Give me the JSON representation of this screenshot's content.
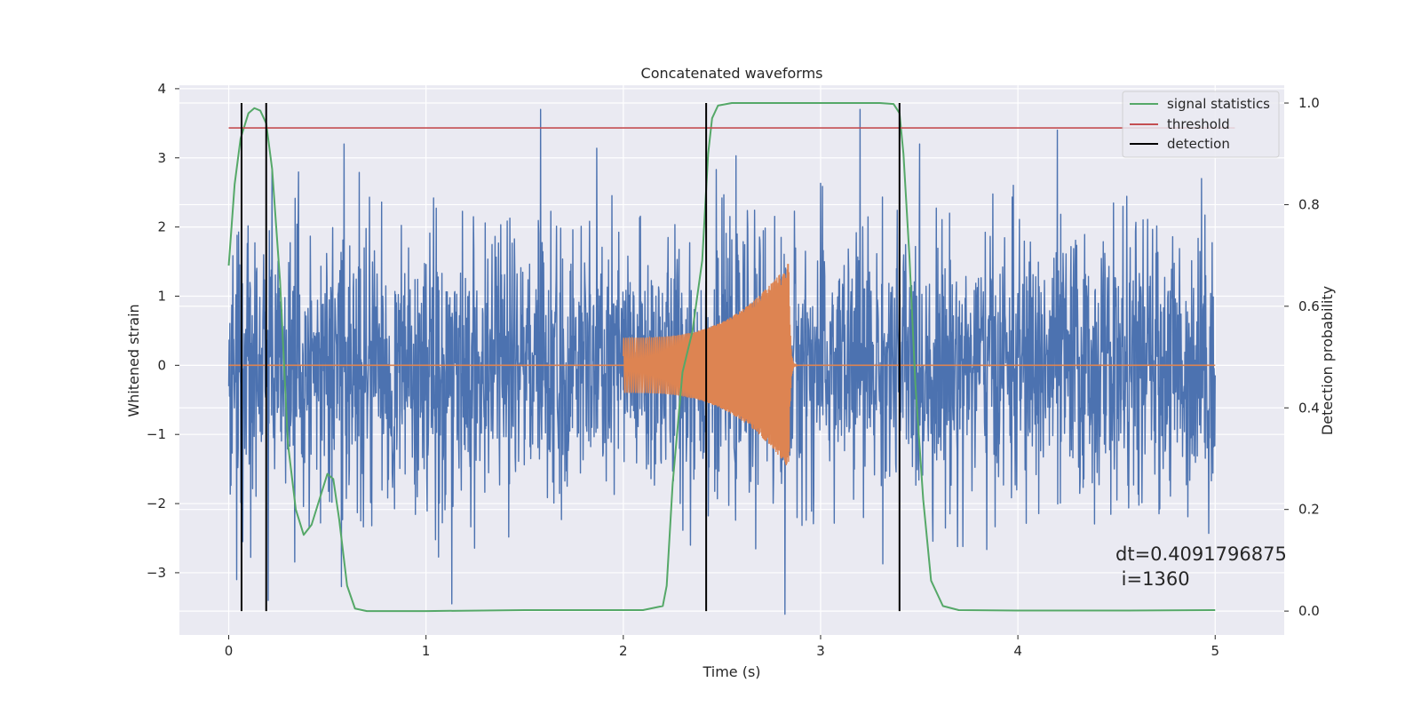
{
  "chart_data": {
    "type": "line",
    "title": "Concatenated waveforms",
    "xlabel": "Time (s)",
    "ylabel": "Whitened strain",
    "y2label": "Detection probability",
    "xlim": [
      -0.25,
      5.35
    ],
    "ylim": [
      -3.9,
      4.05
    ],
    "y2lim": [
      -0.047,
      1.035
    ],
    "xticks": [
      0,
      1,
      2,
      3,
      4,
      5
    ],
    "xtick_labels": [
      "0",
      "1",
      "2",
      "3",
      "4",
      "5"
    ],
    "yticks": [
      -3,
      -2,
      -1,
      0,
      1,
      2,
      3,
      4
    ],
    "ytick_labels": [
      "−3",
      "−2",
      "−1",
      "0",
      "1",
      "2",
      "3",
      "4"
    ],
    "y2ticks": [
      0.0,
      0.2,
      0.4,
      0.6,
      0.8,
      1.0
    ],
    "y2tick_labels": [
      "0.0",
      "0.2",
      "0.4",
      "0.6",
      "0.8",
      "1.0"
    ],
    "grid": true,
    "legend_position": "top-right",
    "legend": [
      {
        "label": "signal statistics",
        "color": "#55a868"
      },
      {
        "label": "threshold",
        "color": "#c44e52"
      },
      {
        "label": "detection",
        "color": "#000000"
      }
    ],
    "colors": {
      "strain": "#4c72b0",
      "waveform": "#dd8452",
      "signal_statistics": "#55a868",
      "threshold": "#c44e52",
      "detection": "#000000",
      "plot_background": "#eaeaf2",
      "grid": "#ffffff"
    },
    "series": [
      {
        "name": "strain (noise)",
        "axis": "left",
        "x_range": [
          0,
          5
        ],
        "typical_envelope": [
          -2.5,
          2.5
        ],
        "extremes": [
          {
            "x": 0.04,
            "y": -3.1
          },
          {
            "x": 0.2,
            "y": -3.4
          },
          {
            "x": 1.13,
            "y": -3.45
          },
          {
            "x": 1.58,
            "y": 3.7
          },
          {
            "x": 2.82,
            "y": -3.6
          },
          {
            "x": 3.2,
            "y": 3.7
          },
          {
            "x": 4.2,
            "y": 3.4
          },
          {
            "x": 4.93,
            "y": 2.7
          }
        ]
      },
      {
        "name": "injected waveform",
        "axis": "left",
        "segments": [
          {
            "x_start": 2.0,
            "x_end": 2.84,
            "amp_start": 0.4,
            "amp_end": 1.5
          }
        ]
      },
      {
        "name": "signal statistics",
        "axis": "right",
        "x": [
          0.0,
          0.03,
          0.06,
          0.1,
          0.13,
          0.16,
          0.19,
          0.22,
          0.26,
          0.3,
          0.34,
          0.38,
          0.42,
          0.46,
          0.5,
          0.53,
          0.56,
          0.6,
          0.64,
          0.7,
          1.0,
          1.5,
          1.9,
          2.1,
          2.2,
          2.22,
          2.25,
          2.3,
          2.35,
          2.4,
          2.43,
          2.45,
          2.48,
          2.55,
          3.0,
          3.3,
          3.37,
          3.4,
          3.42,
          3.45,
          3.48,
          3.52,
          3.56,
          3.62,
          3.7,
          4.0,
          4.5,
          5.0
        ],
        "values": [
          0.68,
          0.84,
          0.93,
          0.98,
          0.99,
          0.985,
          0.96,
          0.87,
          0.65,
          0.33,
          0.2,
          0.15,
          0.17,
          0.22,
          0.27,
          0.26,
          0.18,
          0.05,
          0.005,
          0.0,
          0.0,
          0.002,
          0.002,
          0.002,
          0.01,
          0.05,
          0.25,
          0.47,
          0.55,
          0.69,
          0.9,
          0.97,
          0.995,
          1.0,
          1.0,
          1.0,
          0.998,
          0.98,
          0.9,
          0.7,
          0.45,
          0.22,
          0.06,
          0.01,
          0.002,
          0.001,
          0.001,
          0.002
        ]
      },
      {
        "name": "threshold",
        "axis": "right",
        "x": [
          0.0,
          5.1
        ],
        "values": [
          0.951,
          0.951
        ]
      },
      {
        "name": "detection",
        "axis": "right",
        "x_positions": [
          0.065,
          0.19,
          2.42,
          3.4
        ],
        "range": [
          0.0,
          1.0
        ]
      }
    ],
    "annotations": [
      {
        "text": "dt=0.4091796875",
        "x": 4.5,
        "y": -2.8
      },
      {
        "text": " i=1360",
        "x": 4.5,
        "y": -3.15
      }
    ]
  }
}
